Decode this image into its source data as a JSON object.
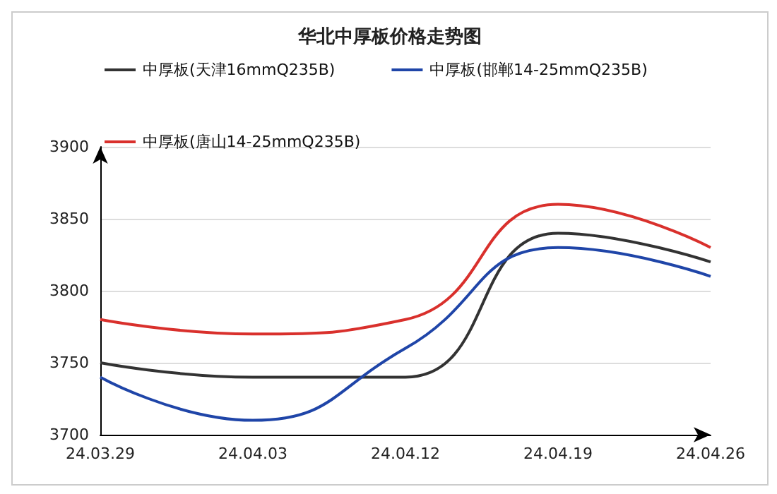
{
  "chart_data": {
    "type": "line",
    "title": "华北中厚板价格走势图",
    "categories": [
      "24.03.29",
      "24.04.03",
      "24.04.12",
      "24.04.19",
      "24.04.26"
    ],
    "series": [
      {
        "name": "中厚板(天津16mmQ235B)",
        "color": "#333333",
        "values": [
          3750,
          3740,
          3740,
          3840,
          3820
        ]
      },
      {
        "name": "中厚板(唐山14-25mmQ235B)",
        "color": "#d9302c",
        "values": [
          3780,
          3770,
          3780,
          3860,
          3830
        ]
      },
      {
        "name": "中厚板(邯郸14-25mmQ235B)",
        "color": "#1f45a8",
        "values": [
          3740,
          3710,
          3760,
          3830,
          3810
        ]
      }
    ],
    "ylim": [
      3700,
      3900
    ],
    "yticks": [
      3700,
      3750,
      3800,
      3850,
      3900
    ],
    "grid": "y",
    "legend": "top",
    "marker": "none",
    "line_style": "solid"
  }
}
